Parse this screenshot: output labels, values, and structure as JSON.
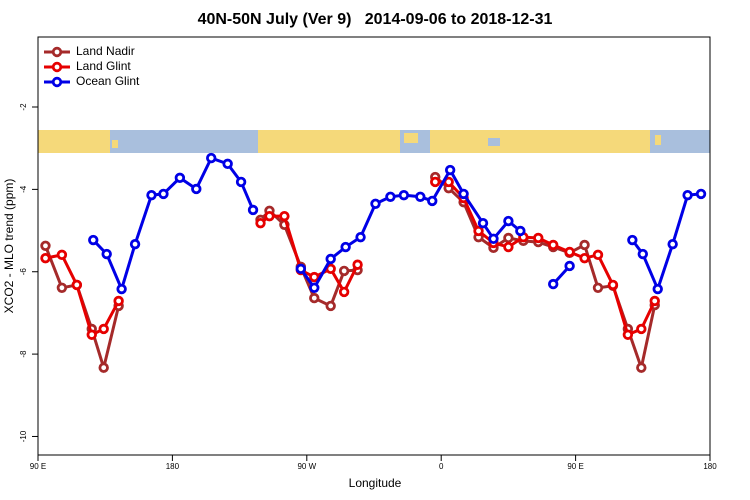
{
  "chart_data": {
    "type": "line",
    "title": "40N-50N July (Ver 9)   2014-09-06 to 2018-12-31",
    "x_label": "Longitude",
    "y_label": "XCO2 - MLO trend (ppm)",
    "xlim": [
      90,
      540
    ],
    "ylim": [
      -10.45,
      -0.3
    ],
    "xticks": [
      {
        "value": 90,
        "label": "90 E"
      },
      180,
      {
        "value": 270,
        "label": "90 W"
      },
      {
        "value": 360,
        "label": "0"
      },
      {
        "value": 450,
        "label": "90 E"
      },
      {
        "value": 540,
        "label": "180"
      }
    ],
    "yticks": [
      -2,
      -4,
      -6,
      -8,
      -10
    ],
    "legend": "top-left",
    "series": [
      {
        "name": "Land Nadir",
        "color": "#a52a2a",
        "x": [
          95,
          106,
          116,
          126,
          134,
          144,
          null,
          239,
          245,
          255,
          266,
          275,
          286,
          295,
          304,
          null,
          356,
          365,
          375,
          385,
          395,
          405,
          415,
          425,
          435,
          446,
          456,
          465,
          475,
          485,
          494,
          503
        ],
        "values": [
          -5.37,
          -6.39,
          -6.32,
          -7.39,
          -8.33,
          -6.83,
          null,
          -4.74,
          -4.52,
          -4.86,
          -5.88,
          -6.64,
          -6.83,
          -5.98,
          -5.96,
          null,
          -3.7,
          -3.97,
          -4.31,
          -5.16,
          -5.42,
          -5.18,
          -5.25,
          -5.28,
          -5.4,
          -5.54,
          -5.35,
          -6.39,
          -6.34,
          -7.39,
          -8.33,
          -6.81
        ]
      },
      {
        "name": "Land Glint",
        "color": "#e60000",
        "x": [
          95,
          106,
          116,
          126,
          134,
          144,
          null,
          239,
          245,
          255,
          266,
          275,
          286,
          295,
          304,
          null,
          356,
          365,
          375,
          385,
          395,
          405,
          415,
          425,
          435,
          446,
          456,
          465,
          475,
          485,
          494,
          503
        ],
        "values": [
          -5.67,
          -5.59,
          -6.32,
          -7.53,
          -7.39,
          -6.71,
          null,
          -4.82,
          -4.65,
          -4.65,
          -5.96,
          -6.13,
          -5.93,
          -6.49,
          -5.83,
          null,
          -3.82,
          -3.82,
          -4.21,
          -5.01,
          -5.3,
          -5.4,
          -5.16,
          -5.18,
          -5.35,
          -5.52,
          -5.67,
          -5.59,
          -6.32,
          -7.53,
          -7.39,
          -6.71
        ]
      },
      {
        "name": "Ocean Glint",
        "color": "#0000e6",
        "x": [
          127,
          136,
          146,
          155,
          166,
          174,
          185,
          196,
          206,
          217,
          226,
          234,
          null,
          266,
          275,
          286,
          296,
          306,
          316,
          326,
          335,
          346,
          354,
          366,
          375,
          388,
          395,
          405,
          413,
          null,
          435,
          446,
          null,
          488,
          495,
          505,
          515,
          525,
          534
        ],
        "values": [
          -5.23,
          -5.57,
          -6.42,
          -5.33,
          -4.14,
          -4.11,
          -3.72,
          -3.99,
          -3.24,
          -3.38,
          -3.82,
          -4.5,
          null,
          -5.93,
          -6.39,
          -5.69,
          -5.4,
          -5.16,
          -4.35,
          -4.18,
          -4.14,
          -4.18,
          -4.28,
          -3.53,
          -4.11,
          -4.82,
          -5.2,
          -4.77,
          -5.01,
          null,
          -6.3,
          -5.86,
          null,
          -5.23,
          -5.57,
          -6.42,
          -5.33,
          -4.14,
          -4.11
        ]
      }
    ]
  }
}
